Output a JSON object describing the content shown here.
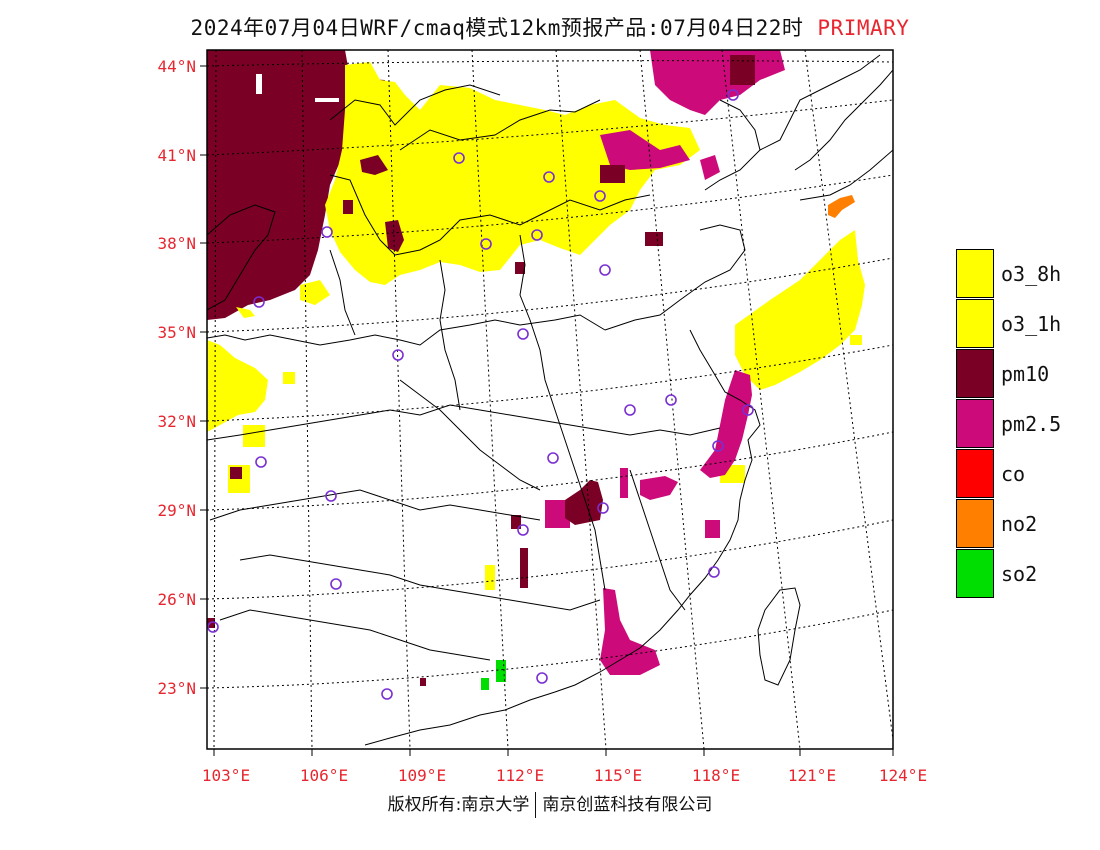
{
  "title": {
    "main": "2024年07月04日WRF/cmaq模式12km预报产品:07月04日22时",
    "tag": "PRIMARY"
  },
  "axes": {
    "lat_labels": [
      "44°N",
      "41°N",
      "38°N",
      "35°N",
      "32°N",
      "29°N",
      "26°N",
      "23°N"
    ],
    "lon_labels": [
      "103°E",
      "106°E",
      "109°E",
      "112°E",
      "115°E",
      "118°E",
      "121°E",
      "124°E"
    ],
    "label_color": "#e8262f"
  },
  "legend": [
    {
      "label": "o3_8h",
      "color": "#ffff00"
    },
    {
      "label": "o3_1h",
      "color": "#ffff00"
    },
    {
      "label": "pm10",
      "color": "#7a0026"
    },
    {
      "label": "pm2.5",
      "color": "#cc0a7a"
    },
    {
      "label": "co",
      "color": "#ff0000"
    },
    {
      "label": "no2",
      "color": "#ff7f00"
    },
    {
      "label": "so2",
      "color": "#00dd00"
    }
  ],
  "footer": {
    "left": "版权所有:南京大学",
    "right": "南京创蓝科技有限公司"
  },
  "station_marker_color": "#7a2fd1"
}
